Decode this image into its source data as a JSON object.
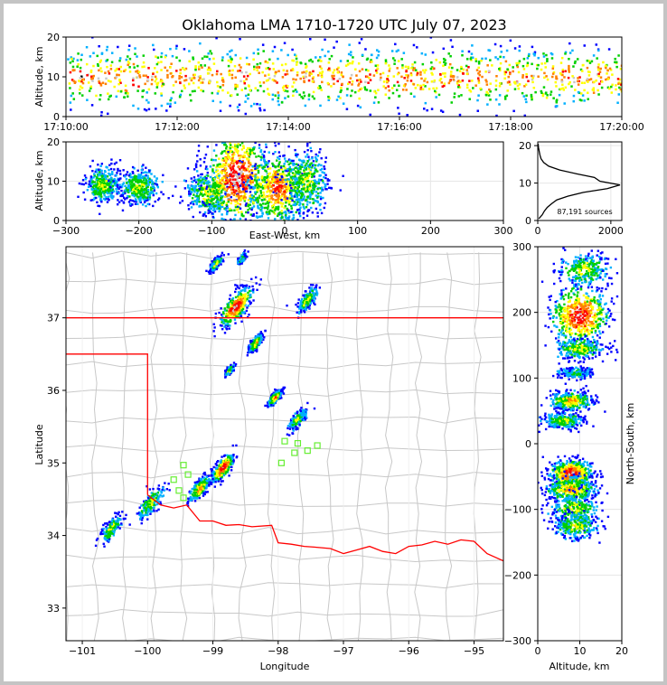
{
  "chart_data": {
    "type": "scatter",
    "title": "Oklahoma LMA 1710-1720 UTC July 07, 2023",
    "panels": [
      {
        "name": "time-height",
        "ylabel": "Altitude, km",
        "xlim": [
          "17:10:00",
          "17:20:00"
        ],
        "ylim": [
          0,
          20
        ],
        "xticks": [
          "17:10:00",
          "17:12:00",
          "17:14:00",
          "17:16:00",
          "17:18:00",
          "17:20:00"
        ],
        "yticks": [
          "0",
          "10",
          "20"
        ],
        "density": {
          "columns_per_minute": 6,
          "bands": [
            {
              "alt_km": 10,
              "spread_km": 4,
              "weight": 1.0
            }
          ]
        }
      },
      {
        "name": "east-west-height",
        "xlabel": "East-West, km",
        "ylabel": "Altitude, km",
        "xlim": [
          -300,
          300
        ],
        "ylim": [
          0,
          20
        ],
        "xticks": [
          "−300",
          "−200",
          "−100",
          "0",
          "100",
          "200",
          "300"
        ],
        "yticks": [
          "0",
          "10",
          "20"
        ],
        "clusters": [
          {
            "x_km": -250,
            "alt_km": 9,
            "sx": 12,
            "sa": 2.2,
            "level": 3
          },
          {
            "x_km": -200,
            "alt_km": 8.5,
            "sx": 14,
            "sa": 2.2,
            "level": 3
          },
          {
            "x_km": -105,
            "alt_km": 7,
            "sx": 15,
            "sa": 3,
            "level": 3
          },
          {
            "x_km": -65,
            "alt_km": 11,
            "sx": 22,
            "sa": 6,
            "level": 6
          },
          {
            "x_km": -10,
            "alt_km": 8,
            "sx": 20,
            "sa": 4.5,
            "level": 5
          },
          {
            "x_km": 30,
            "alt_km": 10,
            "sx": 14,
            "sa": 4,
            "level": 3
          }
        ]
      },
      {
        "name": "altitude-histogram",
        "annotation": "87,191 sources",
        "xlim": [
          0,
          2300
        ],
        "ylim": [
          0,
          21
        ],
        "xticks": [
          "0",
          "2000"
        ],
        "yticks": [
          "0",
          "10",
          "20"
        ],
        "profile": [
          {
            "alt": 0.5,
            "count": 30
          },
          {
            "alt": 1.5,
            "count": 120
          },
          {
            "alt": 2.5,
            "count": 180
          },
          {
            "alt": 3.5,
            "count": 260
          },
          {
            "alt": 4.5,
            "count": 380
          },
          {
            "alt": 5.5,
            "count": 520
          },
          {
            "alt": 6.5,
            "count": 820
          },
          {
            "alt": 7.5,
            "count": 1250
          },
          {
            "alt": 8.5,
            "count": 1900
          },
          {
            "alt": 9.5,
            "count": 2250
          },
          {
            "alt": 10.5,
            "count": 1700
          },
          {
            "alt": 11.5,
            "count": 1550
          },
          {
            "alt": 12.5,
            "count": 1050
          },
          {
            "alt": 13.5,
            "count": 600
          },
          {
            "alt": 14.5,
            "count": 300
          },
          {
            "alt": 15.5,
            "count": 160
          },
          {
            "alt": 16.5,
            "count": 90
          },
          {
            "alt": 17.5,
            "count": 60
          },
          {
            "alt": 18.5,
            "count": 40
          },
          {
            "alt": 19.5,
            "count": 20
          },
          {
            "alt": 20.5,
            "count": 10
          }
        ]
      },
      {
        "name": "plan-view",
        "xlabel": "Longitude",
        "ylabel": "Latitude",
        "xlim": [
          -101.25,
          -94.55
        ],
        "ylim": [
          32.55,
          37.98
        ],
        "xticks": [
          "−101",
          "−100",
          "−99",
          "−98",
          "−97",
          "−96",
          "−95"
        ],
        "yticks": [
          "33",
          "34",
          "35",
          "36",
          "37"
        ],
        "clusters": [
          {
            "lon": -98.95,
            "lat": 37.75,
            "s": 0.07,
            "level": 3
          },
          {
            "lon": -98.55,
            "lat": 37.82,
            "s": 0.05,
            "level": 2
          },
          {
            "lon": -98.65,
            "lat": 37.15,
            "s": 0.18,
            "level": 6
          },
          {
            "lon": -98.35,
            "lat": 36.65,
            "s": 0.08,
            "level": 4
          },
          {
            "lon": -97.55,
            "lat": 37.25,
            "s": 0.12,
            "level": 3
          },
          {
            "lon": -98.05,
            "lat": 35.9,
            "s": 0.07,
            "level": 5
          },
          {
            "lon": -98.75,
            "lat": 36.27,
            "s": 0.05,
            "level": 3
          },
          {
            "lon": -97.7,
            "lat": 35.6,
            "s": 0.1,
            "level": 3
          },
          {
            "lon": -98.85,
            "lat": 34.93,
            "s": 0.12,
            "level": 6
          },
          {
            "lon": -99.2,
            "lat": 34.65,
            "s": 0.12,
            "level": 4
          },
          {
            "lon": -99.95,
            "lat": 34.45,
            "s": 0.14,
            "level": 3
          },
          {
            "lon": -100.55,
            "lat": 34.1,
            "s": 0.12,
            "level": 3
          }
        ],
        "stations": [
          {
            "lon": -99.45,
            "lat": 34.97
          },
          {
            "lon": -99.6,
            "lat": 34.77
          },
          {
            "lon": -99.38,
            "lat": 34.84
          },
          {
            "lon": -99.52,
            "lat": 34.62
          },
          {
            "lon": -99.45,
            "lat": 34.52
          },
          {
            "lon": -97.95,
            "lat": 35.0
          },
          {
            "lon": -97.75,
            "lat": 35.14
          },
          {
            "lon": -97.55,
            "lat": 35.17
          },
          {
            "lon": -97.4,
            "lat": 35.24
          },
          {
            "lon": -97.7,
            "lat": 35.27
          },
          {
            "lon": -97.9,
            "lat": 35.3
          }
        ],
        "state_lines_color": "#ff0000",
        "county_lines_color": "#c8c8c8"
      },
      {
        "name": "north-south-altitude",
        "xlabel": "Altitude, km",
        "ylabel": "North-South, km",
        "xlim": [
          0,
          20
        ],
        "ylim": [
          -300,
          300
        ],
        "xticks": [
          "0",
          "10",
          "20"
        ],
        "yticks": [
          "−300",
          "−200",
          "−100",
          "0",
          "100",
          "200",
          "300"
        ],
        "clusters": [
          {
            "ns_km": 195,
            "alt_km": 10,
            "sa": 3.5,
            "sn": 22,
            "level": 6
          },
          {
            "ns_km": 265,
            "alt_km": 11,
            "sa": 3,
            "sn": 12,
            "level": 3
          },
          {
            "ns_km": 145,
            "alt_km": 10,
            "sa": 3,
            "sn": 8,
            "level": 3
          },
          {
            "ns_km": 108,
            "alt_km": 9,
            "sa": 2,
            "sn": 4,
            "level": 2
          },
          {
            "ns_km": 65,
            "alt_km": 8,
            "sa": 2.5,
            "sn": 7,
            "level": 4
          },
          {
            "ns_km": 35,
            "alt_km": 6,
            "sa": 2.5,
            "sn": 6,
            "level": 3
          },
          {
            "ns_km": -45,
            "alt_km": 8,
            "sa": 2.5,
            "sn": 10,
            "level": 6
          },
          {
            "ns_km": -70,
            "alt_km": 8,
            "sa": 3,
            "sn": 10,
            "level": 4
          },
          {
            "ns_km": -100,
            "alt_km": 9,
            "sa": 3,
            "sn": 12,
            "level": 3
          },
          {
            "ns_km": -125,
            "alt_km": 9,
            "sa": 2.5,
            "sn": 10,
            "level": 3
          }
        ]
      }
    ]
  },
  "colors": {
    "ramp": [
      "#0000ff",
      "#00b0ff",
      "#00d000",
      "#ffff00",
      "#ff8000",
      "#ff0000",
      "#c8c8c8",
      "#000000"
    ],
    "frame": "#c4c4c4"
  }
}
